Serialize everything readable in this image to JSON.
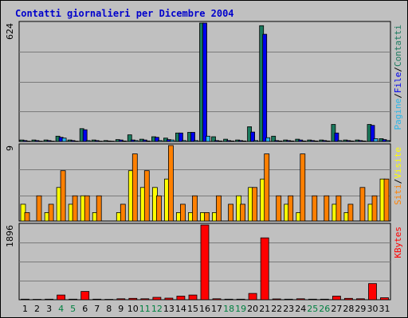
{
  "chart_data": {
    "type": "bar",
    "title": "Contatti giornalieri per Dicembre 2004",
    "categories": [
      "1",
      "2",
      "3",
      "4",
      "5",
      "6",
      "7",
      "8",
      "9",
      "10",
      "11",
      "12",
      "13",
      "14",
      "15",
      "16",
      "17",
      "18",
      "19",
      "20",
      "21",
      "22",
      "23",
      "24",
      "25",
      "26",
      "27",
      "28",
      "29",
      "30",
      "31"
    ],
    "weekend_days": [
      "4",
      "5",
      "11",
      "12",
      "18",
      "19",
      "25",
      "26"
    ],
    "panels": [
      {
        "name": "contatti-panel",
        "max_label": "624",
        "ylim": [
          0,
          624
        ],
        "legend": [
          {
            "text": "Pagine",
            "color": "#2ab5e8"
          },
          {
            "text": "File",
            "color": "#0000ee"
          },
          {
            "text": "Contatti",
            "color": "#1a7a5e"
          }
        ],
        "series": [
          {
            "name": "Contatti",
            "color": "#1a7a5e",
            "values": [
              8,
              8,
              8,
              28,
              8,
              68,
              8,
              5,
              10,
              35,
              12,
              25,
              18,
              45,
              48,
              624,
              25,
              12,
              8,
              78,
              610,
              28,
              8,
              12,
              8,
              8,
              90,
              8,
              8,
              90,
              15
            ]
          },
          {
            "name": "File",
            "color": "#0000ee",
            "values": [
              5,
              5,
              5,
              22,
              5,
              62,
              5,
              3,
              8,
              8,
              8,
              22,
              10,
              45,
              48,
              624,
              5,
              5,
              5,
              50,
              565,
              5,
              5,
              8,
              5,
              5,
              45,
              5,
              5,
              85,
              10
            ]
          },
          {
            "name": "Pagine",
            "color": "#2ab5e8",
            "values": [
              2,
              2,
              2,
              18,
              2,
              5,
              2,
              2,
              3,
              5,
              3,
              5,
              8,
              5,
              5,
              28,
              3,
              3,
              3,
              5,
              20,
              3,
              3,
              3,
              3,
              3,
              5,
              3,
              3,
              15,
              5
            ]
          }
        ]
      },
      {
        "name": "visite-panel",
        "max_label": "9",
        "ylim": [
          0,
          9
        ],
        "legend": [
          {
            "text": "Siti",
            "color": "#ff8000"
          },
          {
            "text": "Visite",
            "color": "#ffff00"
          }
        ],
        "series": [
          {
            "name": "Visite",
            "color": "#ffff00",
            "values": [
              2,
              0,
              1,
              4,
              2,
              3,
              1,
              0,
              1,
              6,
              4,
              4,
              5,
              1,
              1,
              1,
              1,
              0,
              3,
              4,
              5,
              0,
              2,
              1,
              0,
              0,
              2,
              1,
              0,
              2,
              5
            ]
          },
          {
            "name": "Siti",
            "color": "#ff8000",
            "values": [
              1,
              3,
              2,
              6,
              3,
              3,
              3,
              0,
              2,
              8,
              6,
              3,
              9,
              2,
              3,
              1,
              3,
              2,
              2,
              4,
              8,
              3,
              3,
              8,
              3,
              3,
              3,
              2,
              4,
              3,
              5
            ]
          }
        ]
      },
      {
        "name": "kbytes-panel",
        "max_label": "1896",
        "ylim": [
          0,
          1896
        ],
        "legend": [
          {
            "text": "KBytes",
            "color": "#ff0000"
          }
        ],
        "series": [
          {
            "name": "KBytes",
            "color": "#ff0000",
            "values": [
              15,
              10,
              15,
              120,
              15,
              210,
              15,
              10,
              25,
              35,
              25,
              60,
              40,
              90,
              120,
              1896,
              25,
              15,
              15,
              160,
              1570,
              20,
              15,
              25,
              15,
              15,
              90,
              35,
              25,
              410,
              50
            ]
          }
        ]
      }
    ]
  }
}
